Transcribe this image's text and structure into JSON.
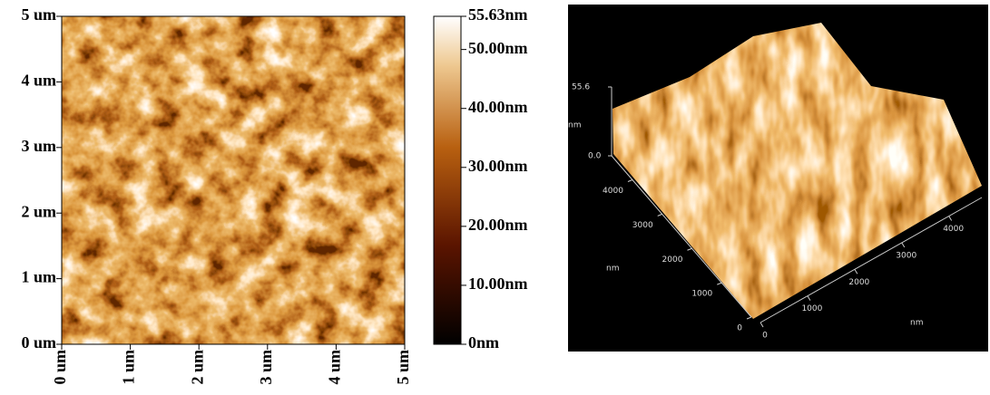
{
  "chart_data": [
    {
      "type": "heatmap",
      "xlim": [
        0,
        5
      ],
      "ylim": [
        0,
        5
      ],
      "xticks": [
        {
          "value": 0,
          "label": "0 um"
        },
        {
          "value": 1,
          "label": "1 um"
        },
        {
          "value": 2,
          "label": "2 um"
        },
        {
          "value": 3,
          "label": "3 um"
        },
        {
          "value": 4,
          "label": "4 um"
        },
        {
          "value": 5,
          "label": "5 um"
        }
      ],
      "yticks": [
        {
          "value": 0,
          "label": "0 um"
        },
        {
          "value": 1,
          "label": "1 um"
        },
        {
          "value": 2,
          "label": "2 um"
        },
        {
          "value": 3,
          "label": "3 um"
        },
        {
          "value": 4,
          "label": "4 um"
        },
        {
          "value": 5,
          "label": "5 um"
        }
      ],
      "colorbar": {
        "lim": [
          0,
          55.63
        ],
        "ticks": [
          {
            "value": 0,
            "label": "0nm"
          },
          {
            "value": 10,
            "label": "10.00nm"
          },
          {
            "value": 20,
            "label": "20.00nm"
          },
          {
            "value": 30,
            "label": "30.00nm"
          },
          {
            "value": 40,
            "label": "40.00nm"
          },
          {
            "value": 50,
            "label": "50.00nm"
          },
          {
            "value": 55.63,
            "label": "55.63nm"
          }
        ]
      }
    },
    {
      "type": "surface3d",
      "xlim": [
        0,
        4700
      ],
      "ylim": [
        0,
        4700
      ],
      "zlim": [
        0,
        55.6
      ],
      "xticks": [
        0,
        1000,
        2000,
        3000,
        4000
      ],
      "xlabel": "nm",
      "yticks": [
        0,
        1000,
        2000,
        3000,
        4000
      ],
      "ylabel": "nm",
      "zticks": [
        {
          "value": 0,
          "label": "0.0"
        },
        {
          "value": 55.6,
          "label": "55.6"
        }
      ],
      "zlabel": "nm"
    }
  ]
}
